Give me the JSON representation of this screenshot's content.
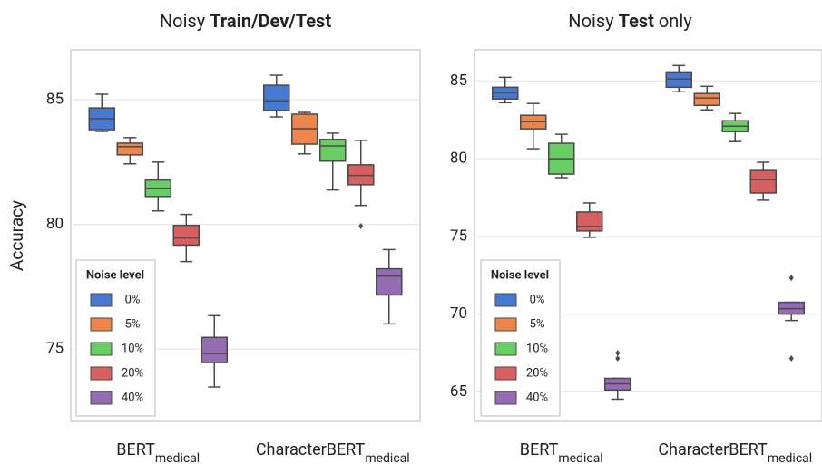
{
  "chart_data": [
    {
      "type": "box",
      "title": [
        "Noisy ",
        "Train/Dev/Test"
      ],
      "title_bold": [
        1
      ],
      "ylabel": "Accuracy",
      "categories": [
        {
          "label": "BERT",
          "subscript": "medical"
        },
        {
          "label": "CharacterBERT",
          "subscript": "medical"
        }
      ],
      "ylim": [
        72.1,
        87.0
      ],
      "yticks": [
        75,
        80,
        85
      ],
      "grid": true,
      "legend_title": "Noise level",
      "legend": "lower left",
      "series": [
        {
          "name": "0%",
          "color": "#4878d0",
          "values": [
            {
              "min": 83.73,
              "q1": 83.8,
              "median": 84.24,
              "q3": 84.67,
              "max": 85.22,
              "outliers": []
            },
            {
              "min": 84.31,
              "q1": 84.57,
              "median": 84.96,
              "q3": 85.58,
              "max": 85.98,
              "outliers": []
            }
          ]
        },
        {
          "name": "5%",
          "color": "#ee854a",
          "values": [
            {
              "min": 82.43,
              "q1": 82.79,
              "median": 83.12,
              "q3": 83.26,
              "max": 83.48,
              "outliers": []
            },
            {
              "min": 82.83,
              "q1": 83.22,
              "median": 83.84,
              "q3": 84.42,
              "max": 84.49,
              "outliers": []
            }
          ]
        },
        {
          "name": "10%",
          "color": "#6acc64",
          "values": [
            {
              "min": 80.54,
              "q1": 81.12,
              "median": 81.45,
              "q3": 81.78,
              "max": 82.5,
              "outliers": []
            },
            {
              "min": 81.38,
              "q1": 82.54,
              "median": 83.15,
              "q3": 83.41,
              "max": 83.66,
              "outliers": []
            }
          ]
        },
        {
          "name": "20%",
          "color": "#d65f5f",
          "values": [
            {
              "min": 78.51,
              "q1": 79.17,
              "median": 79.46,
              "q3": 79.96,
              "max": 80.4,
              "outliers": []
            },
            {
              "min": 80.76,
              "q1": 81.59,
              "median": 81.96,
              "q3": 82.39,
              "max": 83.37,
              "outliers": [
                79.93
              ]
            }
          ]
        },
        {
          "name": "40%",
          "color": "#956cb4",
          "values": [
            {
              "min": 73.48,
              "q1": 74.46,
              "median": 74.82,
              "q3": 75.47,
              "max": 76.34,
              "outliers": []
            },
            {
              "min": 76.01,
              "q1": 77.17,
              "median": 77.93,
              "q3": 78.22,
              "max": 78.99,
              "outliers": []
            }
          ]
        }
      ]
    },
    {
      "type": "box",
      "title": [
        "Noisy ",
        "Test",
        " only"
      ],
      "title_bold": [
        1
      ],
      "categories": [
        {
          "label": "BERT",
          "subscript": "medical"
        },
        {
          "label": "CharacterBERT",
          "subscript": "medical"
        }
      ],
      "ylim": [
        63.1,
        87.0
      ],
      "yticks": [
        65,
        70,
        75,
        80,
        85
      ],
      "grid": true,
      "legend_title": "Noise level",
      "legend": "lower left",
      "series": [
        {
          "name": "0%",
          "color": "#4878d0",
          "values": [
            {
              "min": 83.6,
              "q1": 83.84,
              "median": 84.24,
              "q3": 84.59,
              "max": 85.23,
              "outliers": []
            },
            {
              "min": 84.3,
              "q1": 84.59,
              "median": 85.12,
              "q3": 85.58,
              "max": 85.99,
              "outliers": []
            }
          ]
        },
        {
          "name": "5%",
          "color": "#ee854a",
          "values": [
            {
              "min": 80.64,
              "q1": 81.92,
              "median": 82.38,
              "q3": 82.79,
              "max": 83.55,
              "outliers": []
            },
            {
              "min": 83.14,
              "q1": 83.43,
              "median": 83.9,
              "q3": 84.19,
              "max": 84.65,
              "outliers": []
            }
          ]
        },
        {
          "name": "10%",
          "color": "#6acc64",
          "values": [
            {
              "min": 78.78,
              "q1": 79.01,
              "median": 80.0,
              "q3": 80.99,
              "max": 81.57,
              "outliers": []
            },
            {
              "min": 81.1,
              "q1": 81.74,
              "median": 82.09,
              "q3": 82.44,
              "max": 82.91,
              "outliers": []
            }
          ]
        },
        {
          "name": "20%",
          "color": "#d65f5f",
          "values": [
            {
              "min": 74.94,
              "q1": 75.35,
              "median": 75.64,
              "q3": 76.57,
              "max": 77.15,
              "outliers": []
            },
            {
              "min": 77.33,
              "q1": 77.79,
              "median": 78.66,
              "q3": 79.24,
              "max": 79.77,
              "outliers": []
            }
          ]
        },
        {
          "name": "40%",
          "color": "#956cb4",
          "values": [
            {
              "min": 64.53,
              "q1": 65.12,
              "median": 65.52,
              "q3": 65.87,
              "max": 65.87,
              "outliers": [
                67.5,
                67.15
              ]
            },
            {
              "min": 69.59,
              "q1": 70.0,
              "median": 70.35,
              "q3": 70.76,
              "max": 70.76,
              "outliers": [
                72.33,
                67.15
              ]
            }
          ]
        }
      ]
    }
  ]
}
